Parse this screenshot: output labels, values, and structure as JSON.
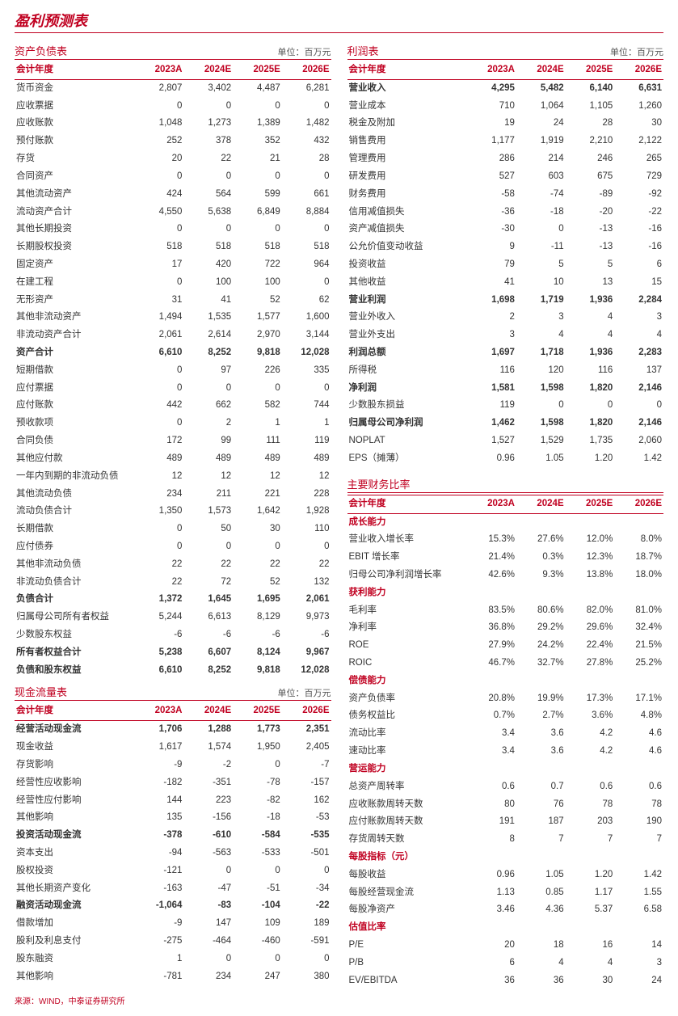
{
  "page_title": "盈利预测表",
  "unit_label": "单位：百万元",
  "years": [
    "2023A",
    "2024E",
    "2025E",
    "2026E"
  ],
  "year_header_label": "会计年度",
  "source_text": "来源：WIND，中泰证券研究所",
  "balance_sheet": {
    "title": "资产负债表",
    "rows": [
      {
        "label": "货币资金",
        "vals": [
          "2,807",
          "3,402",
          "4,487",
          "6,281"
        ]
      },
      {
        "label": "应收票据",
        "vals": [
          "0",
          "0",
          "0",
          "0"
        ]
      },
      {
        "label": "应收账款",
        "vals": [
          "1,048",
          "1,273",
          "1,389",
          "1,482"
        ]
      },
      {
        "label": "预付账款",
        "vals": [
          "252",
          "378",
          "352",
          "432"
        ]
      },
      {
        "label": "存货",
        "vals": [
          "20",
          "22",
          "21",
          "28"
        ]
      },
      {
        "label": "合同资产",
        "vals": [
          "0",
          "0",
          "0",
          "0"
        ]
      },
      {
        "label": "其他流动资产",
        "vals": [
          "424",
          "564",
          "599",
          "661"
        ]
      },
      {
        "label": "流动资产合计",
        "vals": [
          "4,550",
          "5,638",
          "6,849",
          "8,884"
        ]
      },
      {
        "label": "其他长期投资",
        "vals": [
          "0",
          "0",
          "0",
          "0"
        ]
      },
      {
        "label": "长期股权投资",
        "vals": [
          "518",
          "518",
          "518",
          "518"
        ]
      },
      {
        "label": "固定资产",
        "vals": [
          "17",
          "420",
          "722",
          "964"
        ]
      },
      {
        "label": "在建工程",
        "vals": [
          "0",
          "100",
          "100",
          "0"
        ]
      },
      {
        "label": "无形资产",
        "vals": [
          "31",
          "41",
          "52",
          "62"
        ]
      },
      {
        "label": "其他非流动资产",
        "vals": [
          "1,494",
          "1,535",
          "1,577",
          "1,600"
        ]
      },
      {
        "label": "非流动资产合计",
        "vals": [
          "2,061",
          "2,614",
          "2,970",
          "3,144"
        ]
      },
      {
        "label": "资产合计",
        "vals": [
          "6,610",
          "8,252",
          "9,818",
          "12,028"
        ],
        "bold": true
      },
      {
        "label": "短期借款",
        "vals": [
          "0",
          "97",
          "226",
          "335"
        ]
      },
      {
        "label": "应付票据",
        "vals": [
          "0",
          "0",
          "0",
          "0"
        ]
      },
      {
        "label": "应付账款",
        "vals": [
          "442",
          "662",
          "582",
          "744"
        ]
      },
      {
        "label": "预收款项",
        "vals": [
          "0",
          "2",
          "1",
          "1"
        ]
      },
      {
        "label": "合同负债",
        "vals": [
          "172",
          "99",
          "111",
          "119"
        ]
      },
      {
        "label": "其他应付款",
        "vals": [
          "489",
          "489",
          "489",
          "489"
        ]
      },
      {
        "label": "一年内到期的非流动负债",
        "vals": [
          "12",
          "12",
          "12",
          "12"
        ]
      },
      {
        "label": "其他流动负债",
        "vals": [
          "234",
          "211",
          "221",
          "228"
        ]
      },
      {
        "label": "流动负债合计",
        "vals": [
          "1,350",
          "1,573",
          "1,642",
          "1,928"
        ]
      },
      {
        "label": "长期借款",
        "vals": [
          "0",
          "50",
          "30",
          "110"
        ]
      },
      {
        "label": "应付债券",
        "vals": [
          "0",
          "0",
          "0",
          "0"
        ]
      },
      {
        "label": "其他非流动负债",
        "vals": [
          "22",
          "22",
          "22",
          "22"
        ]
      },
      {
        "label": "非流动负债合计",
        "vals": [
          "22",
          "72",
          "52",
          "132"
        ]
      },
      {
        "label": "负债合计",
        "vals": [
          "1,372",
          "1,645",
          "1,695",
          "2,061"
        ],
        "bold": true
      },
      {
        "label": "归属母公司所有者权益",
        "vals": [
          "5,244",
          "6,613",
          "8,129",
          "9,973"
        ]
      },
      {
        "label": "少数股东权益",
        "vals": [
          "-6",
          "-6",
          "-6",
          "-6"
        ]
      },
      {
        "label": "所有者权益合计",
        "vals": [
          "5,238",
          "6,607",
          "8,124",
          "9,967"
        ],
        "bold": true
      },
      {
        "label": "负债和股东权益",
        "vals": [
          "6,610",
          "8,252",
          "9,818",
          "12,028"
        ],
        "bold": true
      }
    ]
  },
  "cash_flow": {
    "title": "现金流量表",
    "rows": [
      {
        "label": "经营活动现金流",
        "vals": [
          "1,706",
          "1,288",
          "1,773",
          "2,351"
        ],
        "bold": true
      },
      {
        "label": "现金收益",
        "vals": [
          "1,617",
          "1,574",
          "1,950",
          "2,405"
        ]
      },
      {
        "label": "存货影响",
        "vals": [
          "-9",
          "-2",
          "0",
          "-7"
        ]
      },
      {
        "label": "经营性应收影响",
        "vals": [
          "-182",
          "-351",
          "-78",
          "-157"
        ]
      },
      {
        "label": "经营性应付影响",
        "vals": [
          "144",
          "223",
          "-82",
          "162"
        ]
      },
      {
        "label": "其他影响",
        "vals": [
          "135",
          "-156",
          "-18",
          "-53"
        ]
      },
      {
        "label": "投资活动现金流",
        "vals": [
          "-378",
          "-610",
          "-584",
          "-535"
        ],
        "bold": true
      },
      {
        "label": "资本支出",
        "vals": [
          "-94",
          "-563",
          "-533",
          "-501"
        ]
      },
      {
        "label": "股权投资",
        "vals": [
          "-121",
          "0",
          "0",
          "0"
        ]
      },
      {
        "label": "其他长期资产变化",
        "vals": [
          "-163",
          "-47",
          "-51",
          "-34"
        ]
      },
      {
        "label": "融资活动现金流",
        "vals": [
          "-1,064",
          "-83",
          "-104",
          "-22"
        ],
        "bold": true
      },
      {
        "label": "借款增加",
        "vals": [
          "-9",
          "147",
          "109",
          "189"
        ]
      },
      {
        "label": "股利及利息支付",
        "vals": [
          "-275",
          "-464",
          "-460",
          "-591"
        ]
      },
      {
        "label": "股东融资",
        "vals": [
          "1",
          "0",
          "0",
          "0"
        ]
      },
      {
        "label": "其他影响",
        "vals": [
          "-781",
          "234",
          "247",
          "380"
        ]
      }
    ]
  },
  "income_statement": {
    "title": "利润表",
    "rows": [
      {
        "label": "营业收入",
        "vals": [
          "4,295",
          "5,482",
          "6,140",
          "6,631"
        ],
        "bold": true
      },
      {
        "label": "营业成本",
        "vals": [
          "710",
          "1,064",
          "1,105",
          "1,260"
        ]
      },
      {
        "label": "税金及附加",
        "vals": [
          "19",
          "24",
          "28",
          "30"
        ]
      },
      {
        "label": "销售费用",
        "vals": [
          "1,177",
          "1,919",
          "2,210",
          "2,122"
        ]
      },
      {
        "label": "管理费用",
        "vals": [
          "286",
          "214",
          "246",
          "265"
        ]
      },
      {
        "label": "研发费用",
        "vals": [
          "527",
          "603",
          "675",
          "729"
        ]
      },
      {
        "label": "财务费用",
        "vals": [
          "-58",
          "-74",
          "-89",
          "-92"
        ]
      },
      {
        "label": "信用减值损失",
        "vals": [
          "-36",
          "-18",
          "-20",
          "-22"
        ]
      },
      {
        "label": "资产减值损失",
        "vals": [
          "-30",
          "0",
          "-13",
          "-16"
        ]
      },
      {
        "label": "公允价值变动收益",
        "vals": [
          "9",
          "-11",
          "-13",
          "-16"
        ]
      },
      {
        "label": "投资收益",
        "vals": [
          "79",
          "5",
          "5",
          "6"
        ]
      },
      {
        "label": "其他收益",
        "vals": [
          "41",
          "10",
          "13",
          "15"
        ]
      },
      {
        "label": "营业利润",
        "vals": [
          "1,698",
          "1,719",
          "1,936",
          "2,284"
        ],
        "bold": true
      },
      {
        "label": "营业外收入",
        "vals": [
          "2",
          "3",
          "4",
          "3"
        ]
      },
      {
        "label": "营业外支出",
        "vals": [
          "3",
          "4",
          "4",
          "4"
        ]
      },
      {
        "label": "利润总额",
        "vals": [
          "1,697",
          "1,718",
          "1,936",
          "2,283"
        ],
        "bold": true
      },
      {
        "label": "所得税",
        "vals": [
          "116",
          "120",
          "116",
          "137"
        ]
      },
      {
        "label": "净利润",
        "vals": [
          "1,581",
          "1,598",
          "1,820",
          "2,146"
        ],
        "bold": true
      },
      {
        "label": "少数股东损益",
        "vals": [
          "119",
          "0",
          "0",
          "0"
        ]
      },
      {
        "label": "归属母公司净利润",
        "vals": [
          "1,462",
          "1,598",
          "1,820",
          "2,146"
        ],
        "bold": true
      },
      {
        "label": "NOPLAT",
        "vals": [
          "1,527",
          "1,529",
          "1,735",
          "2,060"
        ]
      },
      {
        "label": "EPS（摊薄）",
        "vals": [
          "0.96",
          "1.05",
          "1.20",
          "1.42"
        ]
      }
    ]
  },
  "ratios": {
    "title": "主要财务比率",
    "groups": [
      {
        "header": "成长能力",
        "rows": [
          {
            "label": "营业收入增长率",
            "vals": [
              "15.3%",
              "27.6%",
              "12.0%",
              "8.0%"
            ]
          },
          {
            "label": "EBIT 增长率",
            "vals": [
              "21.4%",
              "0.3%",
              "12.3%",
              "18.7%"
            ]
          },
          {
            "label": "归母公司净利润增长率",
            "vals": [
              "42.6%",
              "9.3%",
              "13.8%",
              "18.0%"
            ]
          }
        ]
      },
      {
        "header": "获利能力",
        "rows": [
          {
            "label": "毛利率",
            "vals": [
              "83.5%",
              "80.6%",
              "82.0%",
              "81.0%"
            ]
          },
          {
            "label": "净利率",
            "vals": [
              "36.8%",
              "29.2%",
              "29.6%",
              "32.4%"
            ]
          },
          {
            "label": "ROE",
            "vals": [
              "27.9%",
              "24.2%",
              "22.4%",
              "21.5%"
            ]
          },
          {
            "label": "ROIC",
            "vals": [
              "46.7%",
              "32.7%",
              "27.8%",
              "25.2%"
            ]
          }
        ]
      },
      {
        "header": "偿债能力",
        "rows": [
          {
            "label": "资产负债率",
            "vals": [
              "20.8%",
              "19.9%",
              "17.3%",
              "17.1%"
            ]
          },
          {
            "label": "债务权益比",
            "vals": [
              "0.7%",
              "2.7%",
              "3.6%",
              "4.8%"
            ]
          },
          {
            "label": "流动比率",
            "vals": [
              "3.4",
              "3.6",
              "4.2",
              "4.6"
            ]
          },
          {
            "label": "速动比率",
            "vals": [
              "3.4",
              "3.6",
              "4.2",
              "4.6"
            ]
          }
        ]
      },
      {
        "header": "营运能力",
        "rows": [
          {
            "label": "总资产周转率",
            "vals": [
              "0.6",
              "0.7",
              "0.6",
              "0.6"
            ]
          },
          {
            "label": "应收账款周转天数",
            "vals": [
              "80",
              "76",
              "78",
              "78"
            ]
          },
          {
            "label": "应付账款周转天数",
            "vals": [
              "191",
              "187",
              "203",
              "190"
            ]
          },
          {
            "label": "存货周转天数",
            "vals": [
              "8",
              "7",
              "7",
              "7"
            ]
          }
        ]
      },
      {
        "header": "每股指标（元）",
        "rows": [
          {
            "label": "每股收益",
            "vals": [
              "0.96",
              "1.05",
              "1.20",
              "1.42"
            ]
          },
          {
            "label": "每股经营现金流",
            "vals": [
              "1.13",
              "0.85",
              "1.17",
              "1.55"
            ]
          },
          {
            "label": "每股净资产",
            "vals": [
              "3.46",
              "4.36",
              "5.37",
              "6.58"
            ]
          }
        ]
      },
      {
        "header": "估值比率",
        "rows": [
          {
            "label": "P/E",
            "vals": [
              "20",
              "18",
              "16",
              "14"
            ]
          },
          {
            "label": "P/B",
            "vals": [
              "6",
              "4",
              "4",
              "3"
            ]
          },
          {
            "label": "EV/EBITDA",
            "vals": [
              "36",
              "36",
              "30",
              "24"
            ]
          }
        ]
      }
    ]
  }
}
